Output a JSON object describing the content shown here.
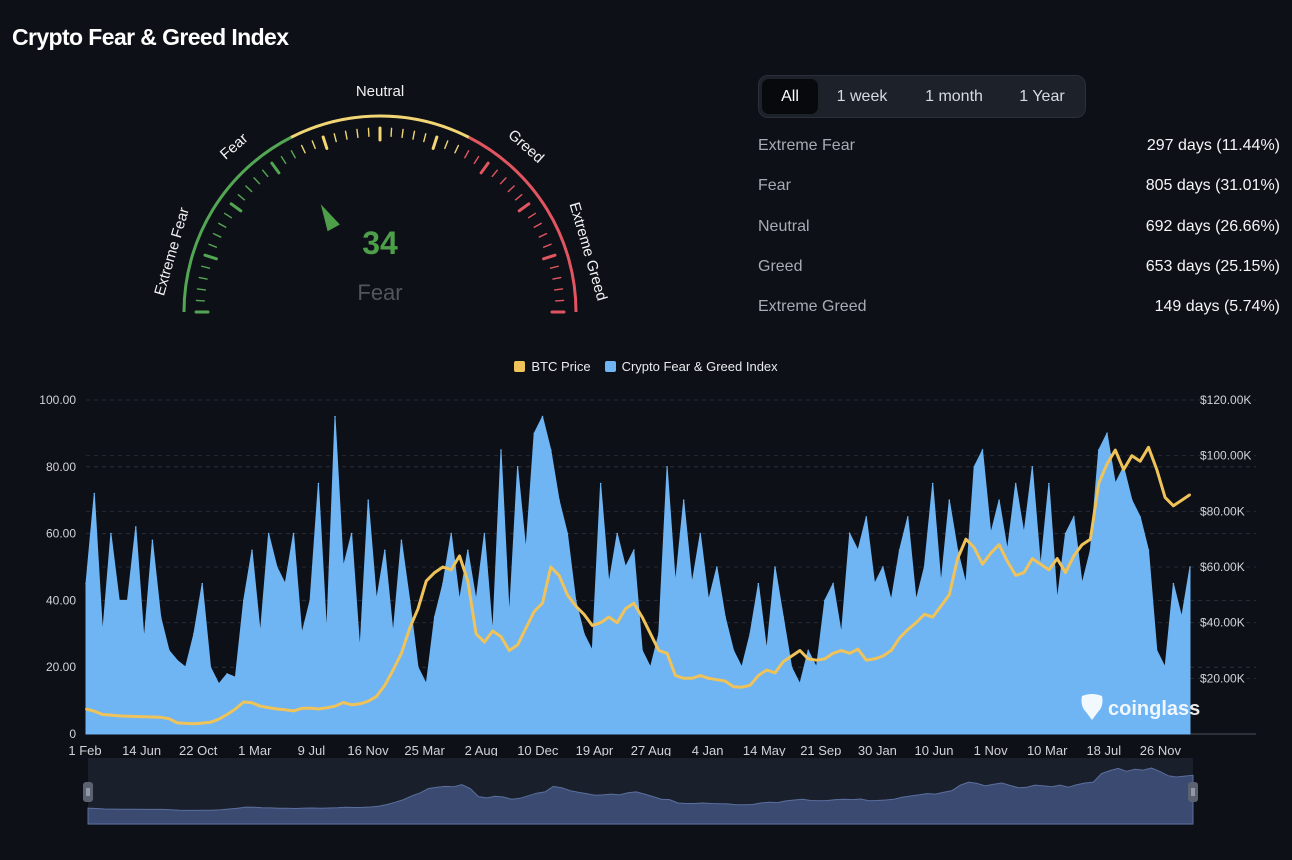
{
  "page": {
    "title": "Crypto Fear & Greed Index"
  },
  "gauge": {
    "value": 34,
    "classification": "Fear",
    "min": 0,
    "max": 100,
    "zones": [
      "Extreme Fear",
      "Fear",
      "Neutral",
      "Greed",
      "Extreme Greed"
    ],
    "colors": {
      "fear": "#53a653",
      "neutral": "#f2d675",
      "greed": "#e05560",
      "value_text": "#4d9f4a",
      "classification_text": "#51555c"
    }
  },
  "tabs": [
    {
      "label": "All",
      "active": true
    },
    {
      "label": "1 week",
      "active": false
    },
    {
      "label": "1 month",
      "active": false
    },
    {
      "label": "1 Year",
      "active": false
    }
  ],
  "stats": [
    {
      "label": "Extreme Fear",
      "value": "297 days (11.44%)"
    },
    {
      "label": "Fear",
      "value": "805 days (31.01%)"
    },
    {
      "label": "Neutral",
      "value": "692 days (26.66%)"
    },
    {
      "label": "Greed",
      "value": "653 days (25.15%)"
    },
    {
      "label": "Extreme Greed",
      "value": "149 days (5.74%)"
    }
  ],
  "watermark": "coinglass",
  "chart_data": {
    "type": "area",
    "legend_position": "top-center",
    "grid": true,
    "x_tick_labels": [
      "1 Feb",
      "14 Jun",
      "22 Oct",
      "1 Mar",
      "9 Jul",
      "16 Nov",
      "25 Mar",
      "2 Aug",
      "10 Dec",
      "19 Apr",
      "27 Aug",
      "4 Jan",
      "14 May",
      "21 Sep",
      "30 Jan",
      "10 Jun",
      "1 Nov",
      "10 Mar",
      "18 Jul",
      "26 Nov"
    ],
    "y_left": {
      "ticks": [
        "0",
        "20.00",
        "40.00",
        "60.00",
        "80.00",
        "100.00"
      ],
      "range": [
        0,
        100
      ]
    },
    "y_right": {
      "ticks": [
        "$20.00K",
        "$40.00K",
        "$60.00K",
        "$80.00K",
        "$100.00K",
        "$120.00K"
      ],
      "range": [
        0,
        120000
      ]
    },
    "series": [
      {
        "name": "BTC Price",
        "axis": "right",
        "color": "#f0c35a",
        "values": [
          9000,
          8200,
          7000,
          6800,
          6500,
          6400,
          6300,
          6200,
          6100,
          6000,
          5500,
          4000,
          3800,
          3700,
          3900,
          4200,
          5300,
          7000,
          9000,
          11500,
          11200,
          10000,
          9500,
          9000,
          8700,
          8300,
          9200,
          9300,
          9000,
          9400,
          10000,
          11300,
          10500,
          10800,
          11800,
          13500,
          17500,
          23000,
          29000,
          38000,
          45000,
          55000,
          58000,
          60000,
          59000,
          64000,
          55000,
          36000,
          33000,
          37000,
          35000,
          30000,
          32000,
          38000,
          44000,
          47000,
          60000,
          57000,
          50000,
          46000,
          43000,
          39000,
          40000,
          42000,
          40000,
          45000,
          47000,
          42000,
          36000,
          30000,
          29000,
          21000,
          20000,
          20000,
          21000,
          20000,
          19500,
          19000,
          17000,
          16800,
          17500,
          21000,
          23000,
          22000,
          26000,
          28000,
          30000,
          27000,
          26500,
          27000,
          29000,
          30000,
          29000,
          30500,
          26500,
          27000,
          28000,
          30000,
          34500,
          37500,
          40000,
          43000,
          42000,
          46000,
          50000,
          63000,
          70000,
          67000,
          61000,
          65000,
          68000,
          62000,
          57000,
          58000,
          63000,
          61000,
          59000,
          63000,
          58000,
          64000,
          68000,
          70000,
          90000,
          97000,
          102000,
          95000,
          100000,
          98000,
          103000,
          95000,
          85000,
          82000,
          84000,
          86000
        ]
      },
      {
        "name": "Crypto Fear & Greed Index",
        "axis": "left",
        "color": "#6fb4f3",
        "values": [
          45,
          72,
          30,
          60,
          40,
          40,
          62,
          28,
          58,
          35,
          25,
          22,
          20,
          30,
          45,
          20,
          15,
          18,
          17,
          40,
          55,
          30,
          60,
          50,
          45,
          60,
          30,
          40,
          75,
          30,
          95,
          50,
          60,
          25,
          70,
          40,
          55,
          30,
          58,
          40,
          20,
          15,
          35,
          45,
          60,
          40,
          55,
          40,
          60,
          30,
          85,
          35,
          80,
          55,
          90,
          95,
          85,
          70,
          60,
          40,
          30,
          25,
          75,
          45,
          60,
          50,
          55,
          25,
          20,
          30,
          80,
          45,
          70,
          45,
          60,
          40,
          50,
          35,
          25,
          20,
          30,
          45,
          25,
          50,
          35,
          20,
          15,
          25,
          20,
          40,
          45,
          30,
          60,
          55,
          65,
          45,
          50,
          40,
          55,
          65,
          40,
          50,
          75,
          45,
          70,
          55,
          45,
          80,
          85,
          60,
          70,
          55,
          75,
          60,
          80,
          50,
          75,
          40,
          60,
          65,
          45,
          55,
          85,
          90,
          75,
          80,
          70,
          65,
          55,
          25,
          20,
          45,
          35,
          50
        ]
      }
    ]
  }
}
